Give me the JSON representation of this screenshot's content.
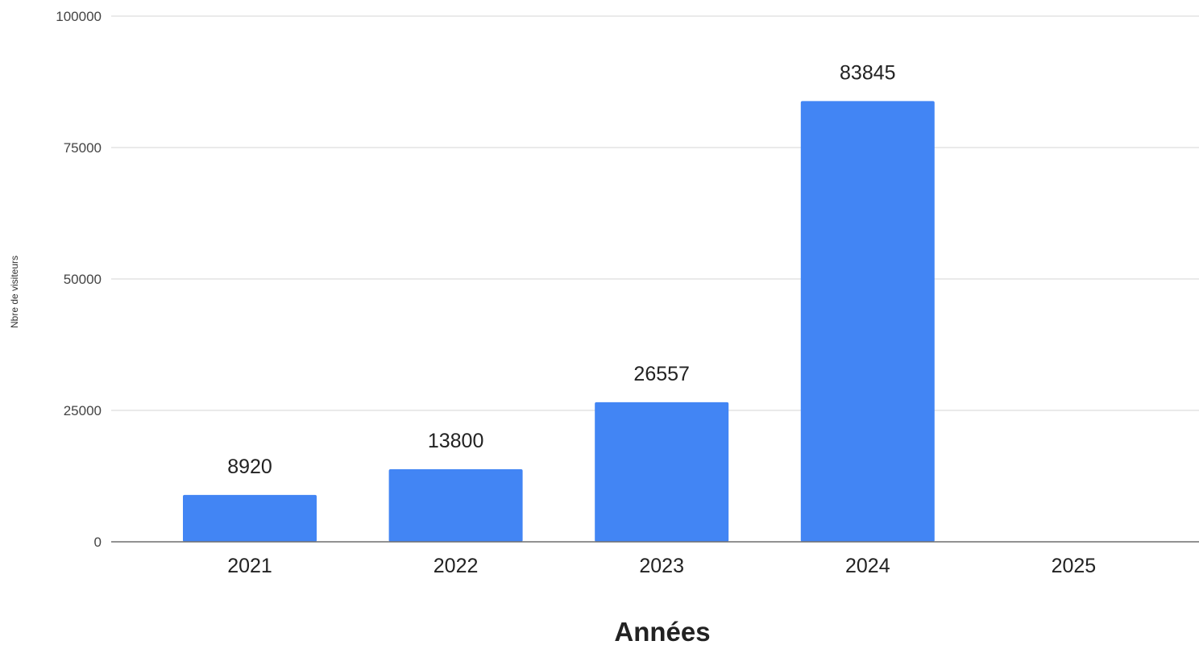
{
  "chart_data": {
    "type": "bar",
    "title": "",
    "xlabel": "Années",
    "ylabel": "Nbre de visiteurs",
    "categories": [
      "2021",
      "2022",
      "2023",
      "2024",
      "2025"
    ],
    "values": [
      8920,
      13800,
      26557,
      83845,
      0
    ],
    "data_labels": [
      "8920",
      "13800",
      "26557",
      "83845",
      ""
    ],
    "yticks": [
      0,
      25000,
      50000,
      75000,
      100000
    ],
    "ylim": [
      0,
      100000
    ],
    "grid": true,
    "legend": "none",
    "colors": {
      "bar": "#4285f4",
      "grid": "#e3e3e3",
      "baseline": "#6f6f6f"
    }
  }
}
